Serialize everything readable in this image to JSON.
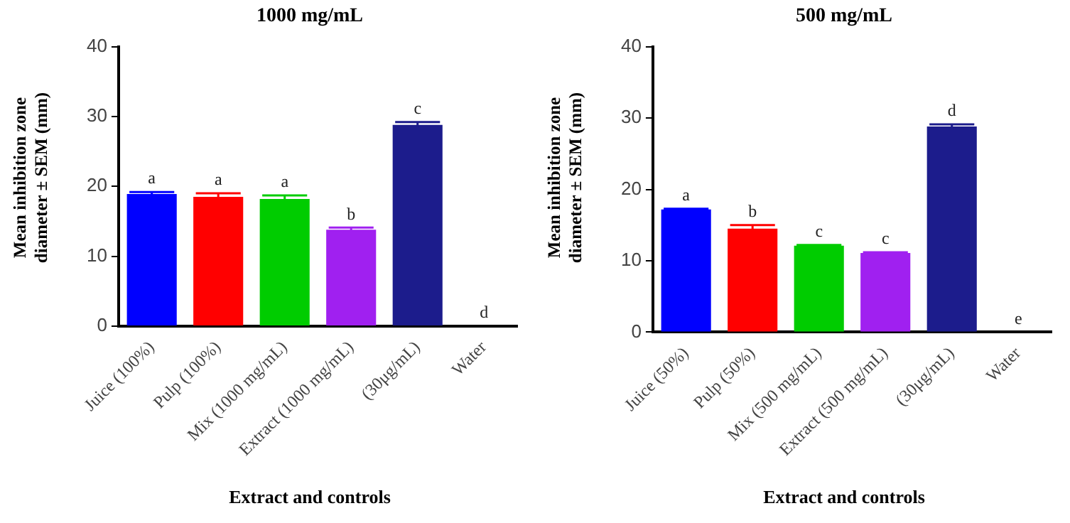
{
  "chart_data": [
    {
      "type": "bar",
      "title": "1000 mg/mL",
      "xlabel": "Extract and controls",
      "ylabel": "Mean inhibition zone diameter ± SEM (mm)",
      "categories": [
        "Juice (100%)",
        "Pulp (100%)",
        "Mix (1000 mg/mL)",
        "Extract (1000 mg/mL)",
        "(30μg/mL)",
        "Water"
      ],
      "values": [
        18.9,
        18.5,
        18.2,
        13.8,
        28.8,
        0
      ],
      "errors": [
        0.3,
        0.5,
        0.5,
        0.3,
        0.4,
        0
      ],
      "colors": [
        "#0000ff",
        "#ff0000",
        "#00cc00",
        "#a020f0",
        "#1c1c8c",
        "#000000"
      ],
      "ylim": [
        0,
        40
      ],
      "yticks": [
        0,
        10,
        20,
        30,
        40
      ],
      "grid": false,
      "legend": false,
      "annotations": [
        {
          "text": "a",
          "x": "Juice (100%)",
          "y": 18.9
        },
        {
          "text": "a",
          "x": "Pulp (100%)",
          "y": 18.5
        },
        {
          "text": "a",
          "x": "Mix (1000 mg/mL)",
          "y": 18.2
        },
        {
          "text": "b",
          "x": "Extract (1000 mg/mL)",
          "y": 13.8
        },
        {
          "text": "c",
          "x": "(30μg/mL)",
          "y": 28.8
        },
        {
          "text": "d",
          "x": "Water",
          "y": 0
        }
      ]
    },
    {
      "type": "bar",
      "title": "500 mg/mL",
      "xlabel": "Extract and controls",
      "ylabel": "Mean inhibition zone diameter ± SEM (mm)",
      "categories": [
        "Juice (50%)",
        "Pulp (50%)",
        "Mix (500 mg/mL)",
        "Extract (500 mg/mL)",
        "(30μg/mL)",
        "Water"
      ],
      "values": [
        17.2,
        14.5,
        12.1,
        11.1,
        28.8,
        0
      ],
      "errors": [
        0.1,
        0.5,
        0.1,
        0.1,
        0.3,
        0
      ],
      "colors": [
        "#0000ff",
        "#ff0000",
        "#00cc00",
        "#a020f0",
        "#1c1c8c",
        "#000000"
      ],
      "ylim": [
        0,
        40
      ],
      "yticks": [
        0,
        10,
        20,
        30,
        40
      ],
      "grid": false,
      "legend": false,
      "annotations": [
        {
          "text": "a",
          "x": "Juice (50%)",
          "y": 17.2
        },
        {
          "text": "b",
          "x": "Pulp (50%)",
          "y": 14.5
        },
        {
          "text": "c",
          "x": "Mix (500 mg/mL)",
          "y": 12.1
        },
        {
          "text": "c",
          "x": "Extract (500 mg/mL)",
          "y": 11.1
        },
        {
          "text": "d",
          "x": "(30μg/mL)",
          "y": 28.8
        },
        {
          "text": "e",
          "x": "Water",
          "y": 0
        }
      ]
    }
  ]
}
